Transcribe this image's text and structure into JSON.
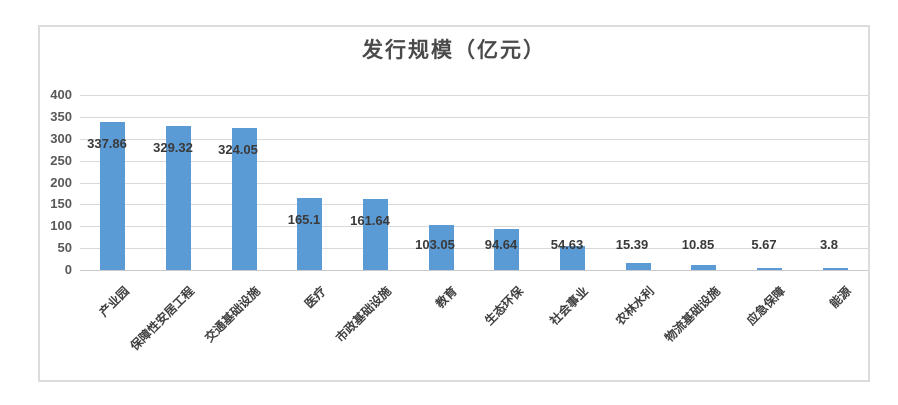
{
  "chart_data": {
    "type": "bar",
    "title": "发行规模（亿元）",
    "categories": [
      "产业园",
      "保障性安居工程",
      "交通基础设施",
      "医疗",
      "市政基础设施",
      "教育",
      "生态环保",
      "社会事业",
      "农林水利",
      "物流基础设施",
      "应急保障",
      "能源"
    ],
    "values": [
      337.86,
      329.32,
      324.05,
      165.1,
      161.64,
      103.05,
      94.64,
      54.63,
      15.39,
      10.85,
      5.67,
      3.8
    ],
    "data_labels": [
      "337.86",
      "329.32",
      "324.05",
      "165.1",
      "161.64",
      "103.05",
      "94.64",
      "54.63",
      "15.39",
      "10.85",
      "5.67",
      "3.8"
    ],
    "yticks": [
      0,
      50,
      100,
      150,
      200,
      250,
      300,
      350,
      400
    ],
    "ylim": [
      0,
      400
    ],
    "xlabel": "",
    "ylabel": "",
    "grid": true,
    "legend": "none",
    "category_label_rotation_deg": 45,
    "colors": {
      "bar": "#5B9BD5",
      "grid": "#D9D9D9",
      "baseline": "#C9C9C9",
      "axis_text": "#595959",
      "value_label_text": "#3A3A3A",
      "category_text": "#3F3F3F",
      "title_text": "#4A4A4A",
      "border": "#DCDCDC",
      "background": "#FFFFFF"
    }
  }
}
